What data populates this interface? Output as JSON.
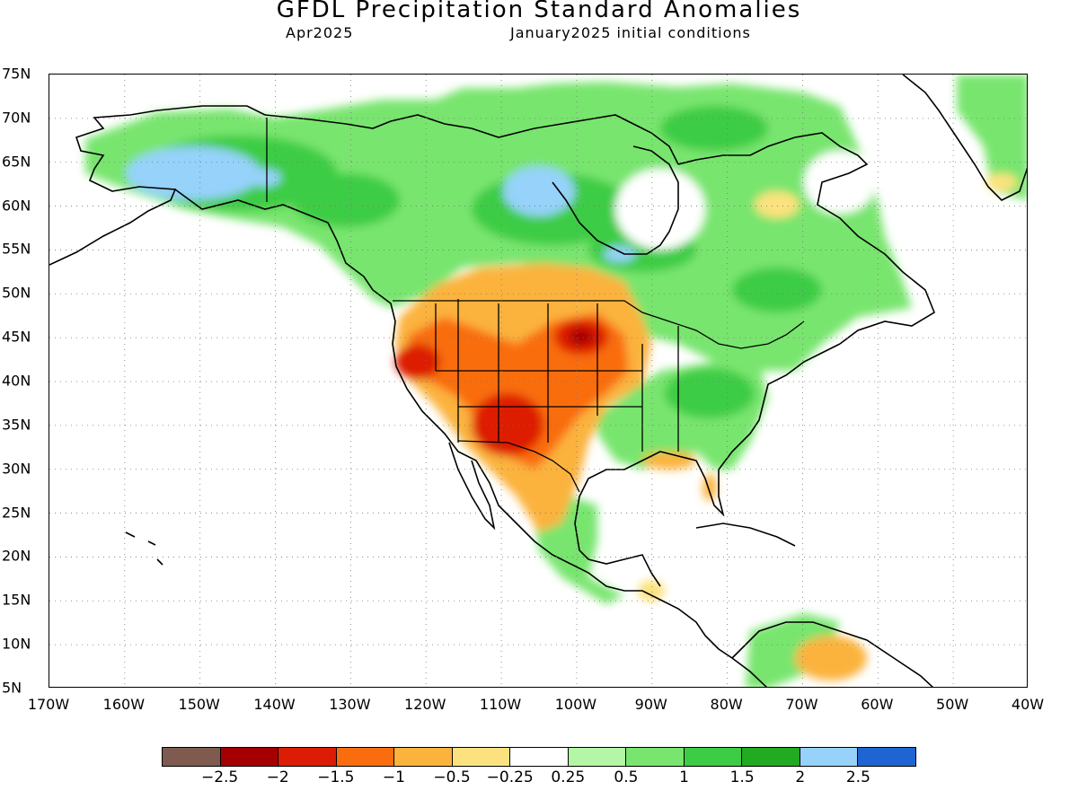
{
  "title": "GFDL Precipitation Standard Anomalies",
  "subtitle_left": "Apr2025",
  "subtitle_right": "January2025 initial conditions",
  "map": {
    "lat_labels": [
      "75N",
      "70N",
      "65N",
      "60N",
      "55N",
      "50N",
      "45N",
      "40N",
      "35N",
      "30N",
      "25N",
      "20N",
      "15N",
      "10N",
      "5N"
    ],
    "lon_labels": [
      "170W",
      "160W",
      "150W",
      "140W",
      "130W",
      "120W",
      "110W",
      "100W",
      "90W",
      "80W",
      "70W",
      "60W",
      "50W",
      "40W"
    ],
    "lat_range": [
      5,
      75
    ],
    "lon_range": [
      -170,
      -40
    ],
    "gridlines": "dotted",
    "regions": [
      {
        "category": "dry_2",
        "lon": -99,
        "lat": 45.5,
        "rlon": 3,
        "rlat": 2
      },
      {
        "category": "dry_1_5",
        "lon": -107,
        "lat": 34,
        "rlon": 5,
        "rlat": 4
      },
      {
        "category": "dry_1_5",
        "lon": -121,
        "lat": 42,
        "rlon": 3,
        "rlat": 2.5
      },
      {
        "category": "wet_2_5",
        "lon": -158,
        "lat": 61.5,
        "rlon": 6,
        "rlat": 2.5
      },
      {
        "category": "wet_2_5",
        "lon": -103,
        "lat": 61.5,
        "rlon": 3,
        "rlat": 2.5
      },
      {
        "category": "wet_2",
        "lon": -86,
        "lat": 37,
        "rlon": 2,
        "rlat": 1.2
      }
    ]
  },
  "legend": {
    "title": "",
    "colors": [
      "#7f5a4f",
      "#a50000",
      "#dd1c05",
      "#f96d0f",
      "#fbb33c",
      "#fbe27e",
      "#ffffff",
      "#b4f6a5",
      "#78e56e",
      "#3ccc45",
      "#22aa20",
      "#96d2fa",
      "#1e64d2"
    ],
    "labels": [
      "−2.5",
      "−2",
      "−1.5",
      "−1",
      "−0.5",
      "−0.25",
      "0.25",
      "0.5",
      "1",
      "1.5",
      "2",
      "2.5"
    ]
  }
}
